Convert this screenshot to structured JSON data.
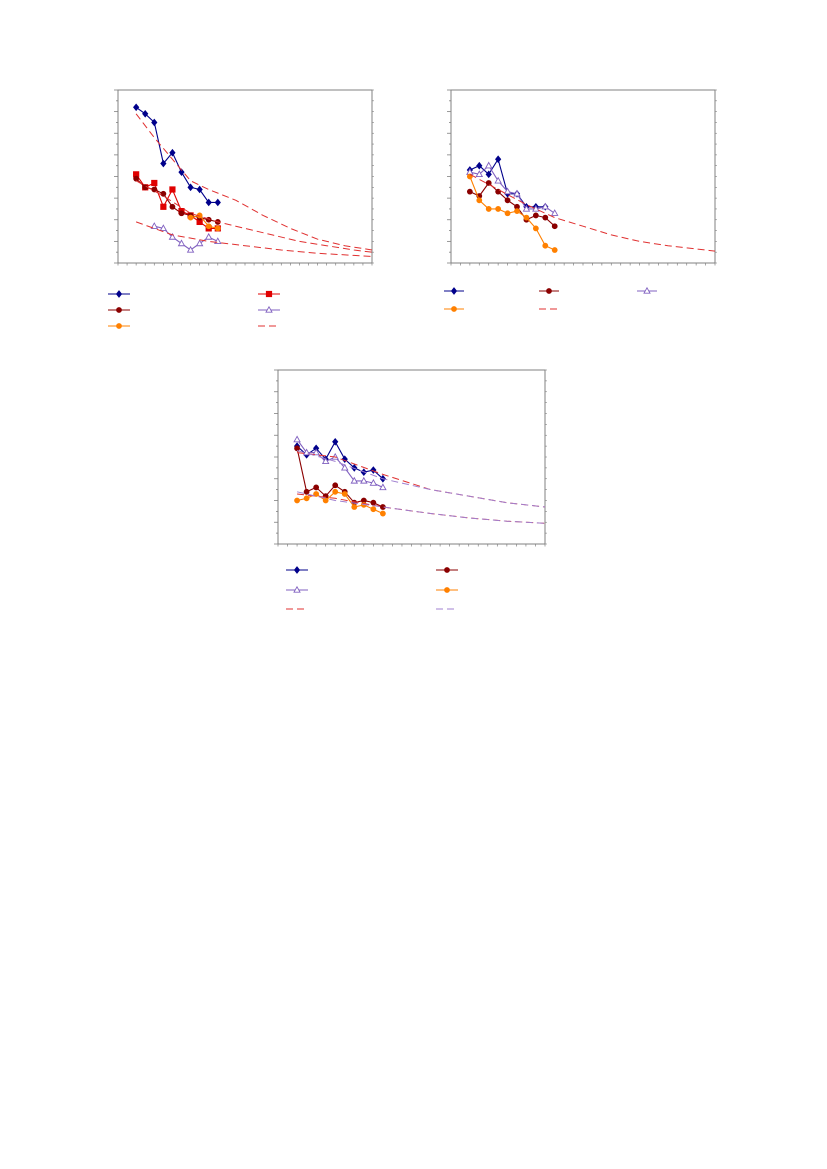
{
  "colors": {
    "navy": "#00008B",
    "darkred": "#8B0000",
    "red": "#E00000",
    "purple": "#8060C0",
    "orange": "#FF8000",
    "dash_red": "#E03030",
    "dash_purple": "#A080D0"
  },
  "chart_data": [
    {
      "type": "line",
      "grid": false,
      "xlim": [
        0,
        28
      ],
      "ylim": [
        0,
        8
      ],
      "series": [
        {
          "color": "navy",
          "marker": "diamond",
          "style": "solid",
          "points": [
            [
              2,
              7.2
            ],
            [
              3,
              6.9
            ],
            [
              4,
              6.5
            ],
            [
              5,
              4.6
            ],
            [
              6,
              5.1
            ],
            [
              7,
              4.2
            ],
            [
              8,
              3.5
            ],
            [
              9,
              3.4
            ],
            [
              10,
              2.8
            ],
            [
              11,
              2.8
            ]
          ]
        },
        {
          "color": "red",
          "marker": "square",
          "style": "solid",
          "points": [
            [
              2,
              4.1
            ],
            [
              3,
              3.5
            ],
            [
              4,
              3.7
            ],
            [
              5,
              2.6
            ],
            [
              6,
              3.4
            ],
            [
              7,
              2.4
            ],
            [
              8,
              2.2
            ],
            [
              9,
              1.9
            ],
            [
              10,
              1.6
            ],
            [
              11,
              1.6
            ]
          ]
        },
        {
          "color": "darkred",
          "marker": "circle",
          "style": "solid",
          "points": [
            [
              2,
              3.9
            ],
            [
              3,
              3.5
            ],
            [
              4,
              3.4
            ],
            [
              5,
              3.2
            ],
            [
              6,
              2.6
            ],
            [
              7,
              2.3
            ],
            [
              8,
              2.2
            ],
            [
              9,
              2.1
            ],
            [
              10,
              2.0
            ],
            [
              11,
              1.9
            ]
          ]
        },
        {
          "color": "purple",
          "marker": "triangle",
          "style": "solid",
          "points": [
            [
              4,
              1.7
            ],
            [
              5,
              1.6
            ],
            [
              6,
              1.2
            ],
            [
              7,
              0.9
            ],
            [
              8,
              0.6
            ],
            [
              9,
              0.9
            ],
            [
              10,
              1.2
            ],
            [
              11,
              1.0
            ]
          ]
        },
        {
          "color": "orange",
          "marker": "circle",
          "style": "solid",
          "points": [
            [
              8,
              2.1
            ],
            [
              9,
              2.2
            ],
            [
              10,
              1.7
            ],
            [
              11,
              1.6
            ]
          ]
        },
        {
          "color": "dash_red",
          "marker": "none",
          "style": "dashed",
          "points": [
            [
              2,
              6.9
            ],
            [
              4,
              5.8
            ],
            [
              6,
              4.8
            ],
            [
              8,
              3.8
            ],
            [
              10,
              3.4
            ],
            [
              13,
              2.9
            ],
            [
              16,
              2.2
            ],
            [
              19,
              1.6
            ],
            [
              22,
              1.1
            ],
            [
              25,
              0.8
            ],
            [
              28,
              0.6
            ]
          ]
        },
        {
          "color": "dash_red",
          "marker": "none",
          "style": "dashed",
          "points": [
            [
              2,
              3.8
            ],
            [
              5,
              3.1
            ],
            [
              8,
              2.3
            ],
            [
              11,
              1.9
            ],
            [
              14,
              1.6
            ],
            [
              17,
              1.3
            ],
            [
              20,
              1.0
            ],
            [
              23,
              0.8
            ],
            [
              26,
              0.6
            ],
            [
              28,
              0.5
            ]
          ]
        },
        {
          "color": "dash_red",
          "marker": "none",
          "style": "dashed",
          "points": [
            [
              2,
              1.9
            ],
            [
              6,
              1.3
            ],
            [
              10,
              1.0
            ],
            [
              14,
              0.8
            ],
            [
              18,
              0.6
            ],
            [
              22,
              0.45
            ],
            [
              26,
              0.35
            ],
            [
              28,
              0.3
            ]
          ]
        }
      ]
    },
    {
      "type": "line",
      "grid": false,
      "xlim": [
        0,
        28
      ],
      "ylim": [
        0,
        8
      ],
      "series": [
        {
          "color": "navy",
          "marker": "diamond",
          "style": "solid",
          "points": [
            [
              2,
              4.3
            ],
            [
              3,
              4.5
            ],
            [
              4,
              4.1
            ],
            [
              5,
              4.8
            ],
            [
              6,
              3.2
            ],
            [
              7,
              3.2
            ],
            [
              8,
              2.6
            ],
            [
              9,
              2.6
            ],
            [
              10,
              2.6
            ]
          ]
        },
        {
          "color": "darkred",
          "marker": "circle",
          "style": "solid",
          "points": [
            [
              2,
              3.3
            ],
            [
              3,
              3.1
            ],
            [
              4,
              3.7
            ],
            [
              5,
              3.3
            ],
            [
              6,
              2.9
            ],
            [
              7,
              2.6
            ],
            [
              8,
              2.0
            ],
            [
              9,
              2.2
            ],
            [
              10,
              2.1
            ],
            [
              11,
              1.7
            ]
          ]
        },
        {
          "color": "purple",
          "marker": "triangle",
          "style": "solid",
          "points": [
            [
              2,
              4.2
            ],
            [
              3,
              4.1
            ],
            [
              4,
              4.5
            ],
            [
              5,
              3.8
            ],
            [
              6,
              3.3
            ],
            [
              7,
              3.2
            ],
            [
              8,
              2.5
            ],
            [
              9,
              2.5
            ],
            [
              10,
              2.6
            ],
            [
              11,
              2.3
            ]
          ]
        },
        {
          "color": "orange",
          "marker": "circle",
          "style": "solid",
          "points": [
            [
              2,
              4.0
            ],
            [
              3,
              2.9
            ],
            [
              4,
              2.5
            ],
            [
              5,
              2.5
            ],
            [
              6,
              2.3
            ],
            [
              7,
              2.4
            ],
            [
              8,
              2.1
            ],
            [
              9,
              1.6
            ],
            [
              10,
              0.8
            ],
            [
              11,
              0.6
            ]
          ]
        },
        {
          "color": "dash_red",
          "marker": "none",
          "style": "dashed",
          "points": [
            [
              2,
              4.1
            ],
            [
              5,
              3.4
            ],
            [
              8,
              2.7
            ],
            [
              11,
              2.1
            ],
            [
              14,
              1.7
            ],
            [
              17,
              1.3
            ],
            [
              20,
              1.0
            ],
            [
              23,
              0.8
            ],
            [
              26,
              0.65
            ],
            [
              28,
              0.55
            ]
          ]
        }
      ]
    },
    {
      "type": "line",
      "grid": false,
      "xlim": [
        0,
        28
      ],
      "ylim": [
        0,
        8
      ],
      "series": [
        {
          "color": "navy",
          "marker": "diamond",
          "style": "solid",
          "points": [
            [
              2,
              4.5
            ],
            [
              3,
              4.1
            ],
            [
              4,
              4.4
            ],
            [
              5,
              3.9
            ],
            [
              6,
              4.7
            ],
            [
              7,
              3.9
            ],
            [
              8,
              3.5
            ],
            [
              9,
              3.3
            ],
            [
              10,
              3.4
            ],
            [
              11,
              3.0
            ]
          ]
        },
        {
          "color": "darkred",
          "marker": "circle",
          "style": "solid",
          "points": [
            [
              2,
              4.4
            ],
            [
              3,
              2.4
            ],
            [
              4,
              2.6
            ],
            [
              5,
              2.2
            ],
            [
              6,
              2.7
            ],
            [
              7,
              2.4
            ],
            [
              8,
              1.9
            ],
            [
              9,
              2.0
            ],
            [
              10,
              1.9
            ],
            [
              11,
              1.7
            ]
          ]
        },
        {
          "color": "purple",
          "marker": "triangle",
          "style": "solid",
          "points": [
            [
              2,
              4.8
            ],
            [
              3,
              4.2
            ],
            [
              4,
              4.2
            ],
            [
              5,
              3.8
            ],
            [
              6,
              4.0
            ],
            [
              7,
              3.5
            ],
            [
              8,
              2.9
            ],
            [
              9,
              2.9
            ],
            [
              10,
              2.8
            ],
            [
              11,
              2.6
            ]
          ]
        },
        {
          "color": "orange",
          "marker": "circle",
          "style": "solid",
          "points": [
            [
              2,
              2.0
            ],
            [
              3,
              2.1
            ],
            [
              4,
              2.3
            ],
            [
              5,
              2.0
            ],
            [
              6,
              2.4
            ],
            [
              7,
              2.3
            ],
            [
              8,
              1.7
            ],
            [
              9,
              1.8
            ],
            [
              10,
              1.6
            ],
            [
              11,
              1.4
            ]
          ]
        },
        {
          "color": "dash_red",
          "marker": "none",
          "style": "dashed",
          "points": [
            [
              2,
              4.2
            ],
            [
              6,
              4.0
            ],
            [
              11,
              3.2
            ],
            [
              16,
              2.5
            ],
            [
              20,
              2.2
            ],
            [
              24,
              1.9
            ],
            [
              28,
              1.7
            ]
          ]
        },
        {
          "color": "dash_purple",
          "marker": "none",
          "style": "dashed",
          "points": [
            [
              2,
              4.3
            ],
            [
              6,
              3.8
            ],
            [
              11,
              3.0
            ],
            [
              16,
              2.5
            ],
            [
              20,
              2.2
            ],
            [
              24,
              1.9
            ],
            [
              28,
              1.7
            ]
          ]
        },
        {
          "color": "dash_red",
          "marker": "none",
          "style": "dashed",
          "points": [
            [
              2,
              2.3
            ],
            [
              6,
              2.1
            ],
            [
              11,
              1.7
            ],
            [
              16,
              1.4
            ],
            [
              20,
              1.2
            ],
            [
              24,
              1.05
            ],
            [
              28,
              0.95
            ]
          ]
        },
        {
          "color": "dash_purple",
          "marker": "none",
          "style": "dashed",
          "points": [
            [
              2,
              2.4
            ],
            [
              6,
              2.0
            ],
            [
              11,
              1.7
            ],
            [
              16,
              1.4
            ],
            [
              20,
              1.2
            ],
            [
              24,
              1.05
            ],
            [
              28,
              0.95
            ]
          ]
        }
      ]
    }
  ],
  "legends": [
    {
      "entries": [
        {
          "color": "navy",
          "marker": "diamond",
          "style": "solid"
        },
        {
          "color": "red",
          "marker": "square",
          "style": "solid"
        },
        {
          "color": "darkred",
          "marker": "circle",
          "style": "solid"
        },
        {
          "color": "purple",
          "marker": "triangle",
          "style": "solid"
        },
        {
          "color": "orange",
          "marker": "circle",
          "style": "solid"
        },
        {
          "color": "dash_red",
          "marker": "none",
          "style": "dashed"
        }
      ]
    },
    {
      "entries": [
        {
          "color": "navy",
          "marker": "diamond",
          "style": "solid"
        },
        {
          "color": "darkred",
          "marker": "circle",
          "style": "solid"
        },
        {
          "color": "purple",
          "marker": "triangle",
          "style": "solid"
        },
        {
          "color": "orange",
          "marker": "circle",
          "style": "solid"
        },
        {
          "color": "dash_red",
          "marker": "none",
          "style": "dashed"
        }
      ]
    },
    {
      "entries": [
        {
          "color": "navy",
          "marker": "diamond",
          "style": "solid"
        },
        {
          "color": "darkred",
          "marker": "circle",
          "style": "solid"
        },
        {
          "color": "purple",
          "marker": "triangle",
          "style": "solid"
        },
        {
          "color": "orange",
          "marker": "circle",
          "style": "solid"
        },
        {
          "color": "dash_red",
          "marker": "none",
          "style": "dashed"
        },
        {
          "color": "dash_purple",
          "marker": "none",
          "style": "dashed"
        }
      ]
    }
  ]
}
